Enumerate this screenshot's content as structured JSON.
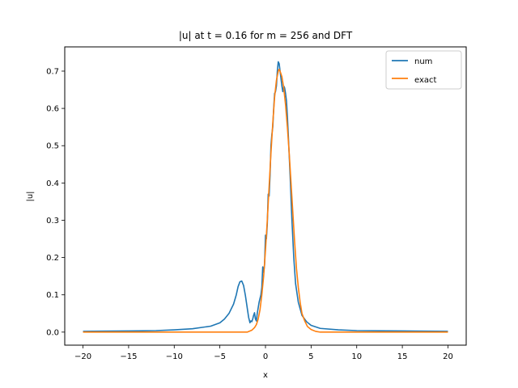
{
  "chart_data": {
    "type": "line",
    "title": "|u| at t = 0.16 for m = 256 and DFT",
    "xlabel": "x",
    "ylabel": "|u|",
    "xlim": [
      -22,
      22
    ],
    "ylim": [
      -0.035,
      0.765
    ],
    "xticks": [
      -20,
      -15,
      -10,
      -5,
      0,
      5,
      10,
      15,
      20
    ],
    "yticks": [
      0.0,
      0.1,
      0.2,
      0.3,
      0.4,
      0.5,
      0.6,
      0.7
    ],
    "xtick_labels": [
      "−20",
      "−15",
      "−10",
      "−5",
      "0",
      "5",
      "10",
      "15",
      "20"
    ],
    "ytick_labels": [
      "0.0",
      "0.1",
      "0.2",
      "0.3",
      "0.4",
      "0.5",
      "0.6",
      "0.7"
    ],
    "grid": false,
    "legend_position": "top-right",
    "series": [
      {
        "name": "num",
        "color": "#1f77b4",
        "points": [
          [
            -20,
            0.002
          ],
          [
            -15,
            0.003
          ],
          [
            -12,
            0.004
          ],
          [
            -10,
            0.006
          ],
          [
            -8,
            0.009
          ],
          [
            -6,
            0.016
          ],
          [
            -5,
            0.025
          ],
          [
            -4.5,
            0.035
          ],
          [
            -4,
            0.05
          ],
          [
            -3.5,
            0.075
          ],
          [
            -3.2,
            0.1
          ],
          [
            -3.0,
            0.122
          ],
          [
            -2.8,
            0.135
          ],
          [
            -2.6,
            0.137
          ],
          [
            -2.4,
            0.125
          ],
          [
            -2.2,
            0.098
          ],
          [
            -2.0,
            0.065
          ],
          [
            -1.85,
            0.04
          ],
          [
            -1.7,
            0.025
          ],
          [
            -1.6,
            0.03
          ],
          [
            -1.5,
            0.028
          ],
          [
            -1.4,
            0.035
          ],
          [
            -1.3,
            0.045
          ],
          [
            -1.2,
            0.052
          ],
          [
            -1.1,
            0.035
          ],
          [
            -1.0,
            0.03
          ],
          [
            -0.9,
            0.05
          ],
          [
            -0.7,
            0.08
          ],
          [
            -0.5,
            0.1
          ],
          [
            -0.4,
            0.12
          ],
          [
            -0.3,
            0.175
          ],
          [
            -0.2,
            0.16
          ],
          [
            -0.1,
            0.18
          ],
          [
            0.0,
            0.26
          ],
          [
            0.1,
            0.25
          ],
          [
            0.2,
            0.29
          ],
          [
            0.3,
            0.37
          ],
          [
            0.4,
            0.365
          ],
          [
            0.5,
            0.42
          ],
          [
            0.6,
            0.5
          ],
          [
            0.7,
            0.53
          ],
          [
            0.8,
            0.55
          ],
          [
            0.9,
            0.6
          ],
          [
            1.0,
            0.64
          ],
          [
            1.1,
            0.645
          ],
          [
            1.2,
            0.66
          ],
          [
            1.3,
            0.7
          ],
          [
            1.4,
            0.725
          ],
          [
            1.5,
            0.72
          ],
          [
            1.6,
            0.7
          ],
          [
            1.7,
            0.68
          ],
          [
            1.8,
            0.66
          ],
          [
            1.9,
            0.645
          ],
          [
            2.0,
            0.66
          ],
          [
            2.1,
            0.655
          ],
          [
            2.2,
            0.64
          ],
          [
            2.3,
            0.62
          ],
          [
            2.4,
            0.58
          ],
          [
            2.5,
            0.53
          ],
          [
            2.7,
            0.42
          ],
          [
            2.9,
            0.3
          ],
          [
            3.1,
            0.2
          ],
          [
            3.3,
            0.13
          ],
          [
            3.6,
            0.08
          ],
          [
            4.0,
            0.045
          ],
          [
            4.5,
            0.028
          ],
          [
            5.0,
            0.018
          ],
          [
            6.0,
            0.01
          ],
          [
            8.0,
            0.006
          ],
          [
            10.0,
            0.004
          ],
          [
            15.0,
            0.003
          ],
          [
            20.0,
            0.002
          ]
        ]
      },
      {
        "name": "exact",
        "color": "#ff7f0e",
        "points": [
          [
            -20,
            0.0
          ],
          [
            -10,
            0.0
          ],
          [
            -5,
            0.0
          ],
          [
            -3,
            0.0
          ],
          [
            -2,
            0.0
          ],
          [
            -1.5,
            0.005
          ],
          [
            -1.2,
            0.012
          ],
          [
            -1.0,
            0.02
          ],
          [
            -0.8,
            0.035
          ],
          [
            -0.6,
            0.06
          ],
          [
            -0.4,
            0.1
          ],
          [
            -0.2,
            0.15
          ],
          [
            0.0,
            0.22
          ],
          [
            0.2,
            0.3
          ],
          [
            0.4,
            0.39
          ],
          [
            0.6,
            0.48
          ],
          [
            0.8,
            0.56
          ],
          [
            1.0,
            0.63
          ],
          [
            1.2,
            0.675
          ],
          [
            1.4,
            0.7
          ],
          [
            1.5,
            0.705
          ],
          [
            1.6,
            0.7
          ],
          [
            1.8,
            0.685
          ],
          [
            2.0,
            0.655
          ],
          [
            2.2,
            0.61
          ],
          [
            2.4,
            0.55
          ],
          [
            2.6,
            0.48
          ],
          [
            2.8,
            0.4
          ],
          [
            3.0,
            0.32
          ],
          [
            3.2,
            0.24
          ],
          [
            3.4,
            0.17
          ],
          [
            3.6,
            0.12
          ],
          [
            3.8,
            0.08
          ],
          [
            4.0,
            0.05
          ],
          [
            4.3,
            0.03
          ],
          [
            4.6,
            0.015
          ],
          [
            5.0,
            0.007
          ],
          [
            5.5,
            0.002
          ],
          [
            6.0,
            0.0
          ],
          [
            10.0,
            0.0
          ],
          [
            20.0,
            0.0
          ]
        ]
      }
    ]
  }
}
